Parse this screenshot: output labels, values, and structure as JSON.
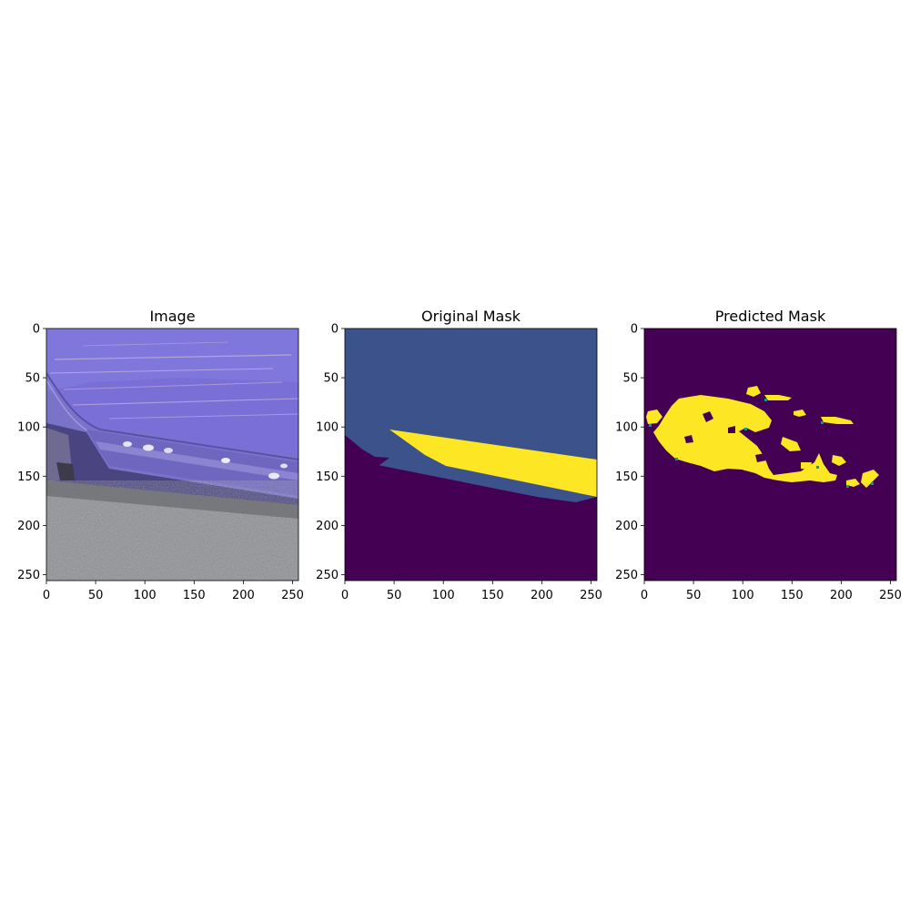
{
  "figure": {
    "panels": [
      {
        "title": "Image",
        "kind": "photo",
        "content": "purple car lower side panel with scratches, rocker panel and dark asphalt ground"
      },
      {
        "title": "Original Mask",
        "kind": "mask",
        "colors": {
          "background": "#440154",
          "car": "#3b528b",
          "damage": "#fde725"
        }
      },
      {
        "title": "Predicted Mask",
        "kind": "mask",
        "colors": {
          "background": "#440154",
          "damage": "#fde725",
          "edge": "#21908d"
        }
      }
    ],
    "axis": {
      "range": [
        0,
        256
      ],
      "xticks": [
        "0",
        "50",
        "100",
        "150",
        "200",
        "250"
      ],
      "yticks": [
        "0",
        "50",
        "100",
        "150",
        "200",
        "250"
      ]
    }
  }
}
